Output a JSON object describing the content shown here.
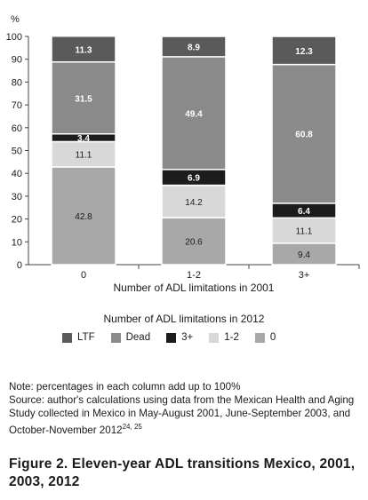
{
  "chart_data": {
    "type": "bar",
    "stacked": true,
    "ylabel": "%",
    "ylim": [
      0,
      100
    ],
    "yticks": [
      0,
      10,
      20,
      30,
      40,
      50,
      60,
      70,
      80,
      90,
      100
    ],
    "xlabel": "Number of ADL limitations in 2001",
    "categories": [
      "0",
      "1-2",
      "3+"
    ],
    "legend_title": "Number of ADL limitations in 2012",
    "legend_placement": "bottom",
    "grid": false,
    "series": [
      {
        "name": "0",
        "color": "#a8a8a8",
        "label_color": "#1a1a1a",
        "values": [
          42.8,
          20.6,
          9.4
        ]
      },
      {
        "name": "1-2",
        "color": "#d8d8d8",
        "label_color": "#1a1a1a",
        "values": [
          11.1,
          14.2,
          11.1
        ]
      },
      {
        "name": "3+",
        "color": "#1c1c1c",
        "label_color": "#ffffff",
        "values": [
          3.4,
          6.9,
          6.4
        ]
      },
      {
        "name": "Dead",
        "color": "#8a8a8a",
        "label_color": "#ffffff",
        "values": [
          31.5,
          49.4,
          60.8
        ]
      },
      {
        "name": "LTF",
        "color": "#5a5a5a",
        "label_color": "#ffffff",
        "values": [
          11.3,
          8.9,
          12.3
        ]
      }
    ],
    "legend_order": [
      "LTF",
      "Dead",
      "3+",
      "1-2",
      "0"
    ]
  },
  "notes": {
    "line1": "Note: percentages in each column add up to 100%",
    "line2": "Source: author's calculations using data from the Mexican Health and Aging Study collected in Mexico in May-August 2001, June-September 2003, and October-November 2012",
    "superscript": "24, 25"
  },
  "caption": "Figure 2. Eleven-year ADL transitions Mexico, 2001, 2003, 2012"
}
